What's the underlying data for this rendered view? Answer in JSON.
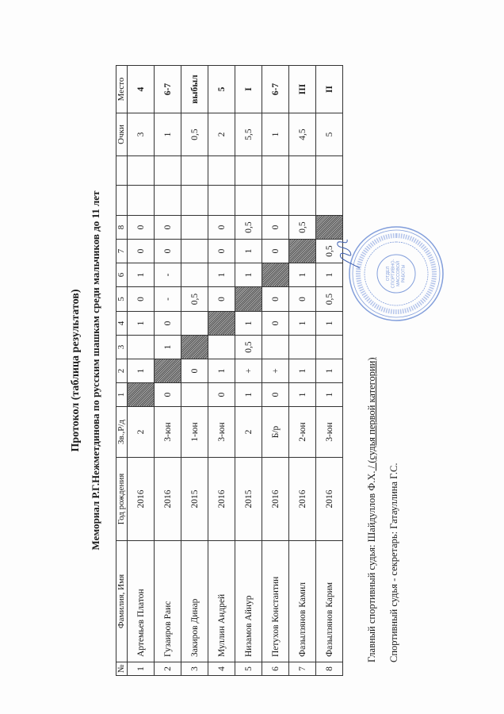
{
  "title": "Протокол (таблица результатов)",
  "subtitle": "Мемориал Р.Г.Нежметдинова по русским шашкам среди мальчиков до 11 лет",
  "table": {
    "headers": [
      "№",
      "Фамилия, Имя",
      "Год рождения",
      "Зв.,Р/д",
      "1",
      "2",
      "3",
      "4",
      "5",
      "6",
      "7",
      "8",
      "",
      "",
      "Очки",
      "Место"
    ],
    "rows": [
      {
        "no": "1",
        "name": "Артемьев Платон",
        "year": "2016",
        "rank": "2",
        "results": [
          null,
          "1",
          "",
          "1",
          "0",
          "1",
          "0",
          "0"
        ],
        "points": "3",
        "place": "4"
      },
      {
        "no": "2",
        "name": "Гузаиров Раис",
        "year": "2016",
        "rank": "3-юн",
        "results": [
          "0",
          null,
          "1",
          "0",
          "-",
          "-",
          "0",
          "0"
        ],
        "points": "1",
        "place": "6-7"
      },
      {
        "no": "3",
        "name": "Закиров Динар",
        "year": "2015",
        "rank": "1-юн",
        "results": [
          "",
          "0",
          null,
          "",
          "0,5",
          "",
          "",
          ""
        ],
        "points": "0,5",
        "place": "выбыл"
      },
      {
        "no": "4",
        "name": "Муллин Андрей",
        "year": "2016",
        "rank": "3-юн",
        "results": [
          "0",
          "1",
          "",
          null,
          "0",
          "1",
          "0",
          "0"
        ],
        "points": "2",
        "place": "5"
      },
      {
        "no": "5",
        "name": "Низамов Айнур",
        "year": "2015",
        "rank": "2",
        "results": [
          "1",
          "+",
          "0,5",
          "1",
          null,
          "1",
          "1",
          "0,5"
        ],
        "points": "5,5",
        "place": "I"
      },
      {
        "no": "6",
        "name": "Петухов Константин",
        "year": "2016",
        "rank": "Б/р",
        "results": [
          "0",
          "+",
          "",
          "0",
          "0",
          null,
          "0",
          "0"
        ],
        "points": "1",
        "place": "6-7"
      },
      {
        "no": "7",
        "name": "Фазылзянов Камил",
        "year": "2016",
        "rank": "2-юн",
        "results": [
          "1",
          "1",
          "",
          "1",
          "0",
          "1",
          null,
          "0,5"
        ],
        "points": "4,5",
        "place": "III"
      },
      {
        "no": "8",
        "name": "Фазылзянов Карим",
        "year": "2016",
        "rank": "3-юн",
        "results": [
          "1",
          "1",
          "",
          "1",
          "0,5",
          "1",
          "0,5",
          null
        ],
        "points": "5",
        "place": "II"
      }
    ]
  },
  "footer": {
    "chief_judge_label": "Главный спортивный судья: Шайдуллов Ф.Х.",
    "chief_judge_sep": " / ",
    "chief_judge_category": "(судья первой категории)",
    "secretary": "Спортивный судья - секретарь: Гатауллина Г.С."
  },
  "stamp": {
    "color": "#5a7fd0",
    "center_text": [
      "ОТДЕЛ",
      "СПОРТИВНО-",
      "МАССОВОЙ",
      "РАБОТЫ"
    ]
  },
  "colors": {
    "ink": "#1a1a1a",
    "shaded_cell": "#777777"
  }
}
